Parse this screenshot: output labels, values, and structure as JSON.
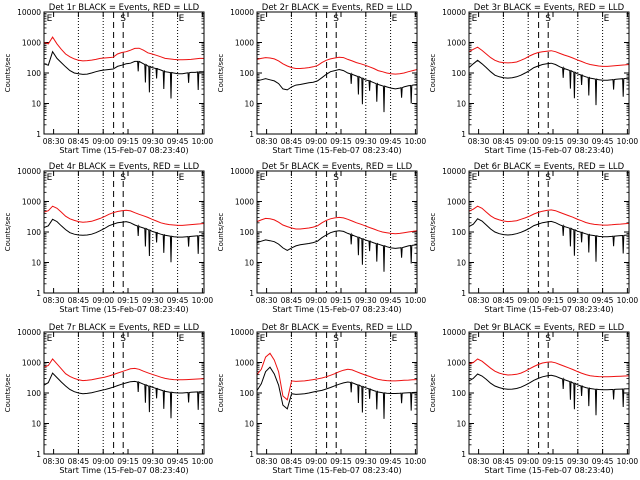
{
  "figure": {
    "colors": {
      "events": "#000000",
      "lld": "#ee1111",
      "frame": "#000000"
    }
  },
  "chart_data": [
    {
      "type": "line",
      "title": "Det 1r BLACK = Events, RED = LLD",
      "xlabel": "Start Time (15-Feb-07 08:23:40)",
      "ylabel": "Counts/sec",
      "x_ticks": [
        "08:30",
        "08:45",
        "09:00",
        "09:15",
        "09:30",
        "09:45",
        "10:00"
      ],
      "y_ticks": [
        "1",
        "10",
        "100",
        "1000",
        "10000"
      ],
      "ylim": [
        1,
        10000
      ],
      "log_y": true,
      "markers": [
        "E",
        "S",
        "E"
      ],
      "series": [
        {
          "role": "lld",
          "values": [
            1000,
            900,
            1500,
            900,
            600,
            420,
            340,
            290,
            260,
            250,
            255,
            265,
            280,
            300,
            310,
            320,
            330,
            420,
            470,
            500,
            560,
            640,
            650,
            560,
            460,
            420,
            380,
            340,
            300,
            290,
            280,
            270,
            270,
            275,
            280,
            290,
            300,
            300
          ]
        },
        {
          "role": "events",
          "values": [
            200,
            180,
            500,
            300,
            220,
            160,
            120,
            100,
            95,
            90,
            92,
            100,
            110,
            120,
            125,
            130,
            135,
            165,
            180,
            200,
            210,
            240,
            240,
            200,
            170,
            150,
            140,
            125,
            110,
            105,
            100,
            95,
            95,
            100,
            105,
            105,
            110,
            110
          ]
        }
      ]
    },
    {
      "type": "line",
      "title": "Det 2r BLACK = Events, RED = LLD",
      "xlabel": "Start Time (15-Feb-07 08:23:40)",
      "ylabel": "Counts/sec",
      "x_ticks": [
        "08:30",
        "08:45",
        "09:00",
        "09:15",
        "09:30",
        "09:45",
        "10:00"
      ],
      "y_ticks": [
        "1",
        "10",
        "100",
        "1000",
        "10000"
      ],
      "ylim": [
        1,
        10000
      ],
      "log_y": true,
      "markers": [
        "E",
        "S",
        "E"
      ],
      "series": [
        {
          "role": "lld",
          "values": [
            280,
            300,
            320,
            310,
            290,
            250,
            200,
            170,
            150,
            140,
            140,
            145,
            150,
            160,
            175,
            220,
            260,
            290,
            310,
            330,
            320,
            280,
            250,
            220,
            200,
            180,
            160,
            140,
            120,
            110,
            100,
            95,
            92,
            95,
            100,
            110,
            120,
            130
          ]
        },
        {
          "role": "events",
          "values": [
            55,
            60,
            65,
            60,
            55,
            45,
            30,
            28,
            35,
            40,
            42,
            45,
            48,
            50,
            55,
            70,
            90,
            110,
            120,
            130,
            120,
            100,
            90,
            80,
            70,
            60,
            55,
            48,
            42,
            38,
            35,
            32,
            30,
            32,
            35,
            38,
            40,
            42
          ]
        }
      ]
    },
    {
      "type": "line",
      "title": "Det 3r BLACK = Events, RED = LLD",
      "xlabel": "Start Time (15-Feb-07 08:23:40)",
      "ylabel": "Counts/sec",
      "x_ticks": [
        "08:30",
        "08:45",
        "09:00",
        "09:15",
        "09:30",
        "09:45",
        "10:00"
      ],
      "y_ticks": [
        "1",
        "10",
        "100",
        "1000",
        "10000"
      ],
      "ylim": [
        1,
        10000
      ],
      "log_y": true,
      "markers": [
        "E",
        "S",
        "E"
      ],
      "series": [
        {
          "role": "lld",
          "values": [
            500,
            600,
            700,
            550,
            420,
            320,
            260,
            230,
            220,
            215,
            220,
            230,
            260,
            300,
            360,
            420,
            470,
            500,
            520,
            540,
            500,
            440,
            390,
            350,
            310,
            270,
            240,
            210,
            190,
            180,
            170,
            165,
            165,
            170,
            175,
            180,
            185,
            190
          ]
        },
        {
          "role": "events",
          "values": [
            150,
            200,
            260,
            200,
            150,
            110,
            85,
            75,
            70,
            68,
            70,
            75,
            85,
            100,
            120,
            150,
            170,
            190,
            200,
            210,
            190,
            160,
            140,
            125,
            110,
            95,
            85,
            75,
            68,
            64,
            60,
            58,
            58,
            60,
            62,
            64,
            66,
            68
          ]
        }
      ]
    },
    {
      "type": "line",
      "title": "Det 4r BLACK = Events, RED = LLD",
      "xlabel": "Start Time (15-Feb-07 08:23:40)",
      "ylabel": "Counts/sec",
      "x_ticks": [
        "08:30",
        "08:45",
        "09:00",
        "09:15",
        "09:30",
        "09:45",
        "10:00"
      ],
      "y_ticks": [
        "1",
        "10",
        "100",
        "1000",
        "10000"
      ],
      "ylim": [
        1,
        10000
      ],
      "log_y": true,
      "markers": [
        "E",
        "S",
        "E"
      ],
      "series": [
        {
          "role": "lld",
          "values": [
            450,
            500,
            700,
            600,
            450,
            330,
            270,
            240,
            220,
            210,
            215,
            225,
            250,
            280,
            320,
            380,
            430,
            470,
            500,
            520,
            490,
            430,
            380,
            340,
            300,
            260,
            230,
            200,
            185,
            175,
            170,
            165,
            165,
            170,
            175,
            180,
            185,
            190
          ]
        },
        {
          "role": "events",
          "values": [
            140,
            160,
            260,
            220,
            160,
            120,
            95,
            85,
            80,
            78,
            80,
            85,
            95,
            110,
            130,
            160,
            180,
            200,
            210,
            220,
            200,
            170,
            150,
            135,
            120,
            105,
            95,
            85,
            78,
            74,
            70,
            68,
            68,
            70,
            72,
            74,
            76,
            78
          ]
        }
      ]
    },
    {
      "type": "line",
      "title": "Det 5r BLACK = Events, RED = LLD",
      "xlabel": "Start Time (15-Feb-07 08:23:40)",
      "ylabel": "Counts/sec",
      "x_ticks": [
        "08:30",
        "08:45",
        "09:00",
        "09:15",
        "09:30",
        "09:45",
        "10:00"
      ],
      "y_ticks": [
        "1",
        "10",
        "100",
        "1000",
        "10000"
      ],
      "ylim": [
        1,
        10000
      ],
      "log_y": true,
      "markers": [
        "E",
        "S",
        "E"
      ],
      "series": [
        {
          "role": "lld",
          "values": [
            220,
            250,
            280,
            270,
            250,
            210,
            170,
            150,
            135,
            125,
            125,
            130,
            135,
            145,
            160,
            200,
            240,
            270,
            290,
            300,
            290,
            260,
            230,
            200,
            180,
            160,
            140,
            125,
            110,
            100,
            95,
            90,
            88,
            90,
            95,
            100,
            105,
            110
          ]
        },
        {
          "role": "events",
          "values": [
            45,
            50,
            55,
            52,
            48,
            40,
            30,
            25,
            30,
            35,
            38,
            40,
            42,
            45,
            50,
            65,
            80,
            95,
            105,
            110,
            105,
            90,
            80,
            70,
            62,
            55,
            50,
            44,
            40,
            36,
            33,
            30,
            29,
            30,
            32,
            35,
            37,
            38
          ]
        }
      ]
    },
    {
      "type": "line",
      "title": "Det 6r BLACK = Events, RED = LLD",
      "xlabel": "Start Time (15-Feb-07 08:23:40)",
      "ylabel": "Counts/sec",
      "x_ticks": [
        "08:30",
        "08:45",
        "09:00",
        "09:15",
        "09:30",
        "09:45",
        "10:00"
      ],
      "y_ticks": [
        "1",
        "10",
        "100",
        "1000",
        "10000"
      ],
      "ylim": [
        1,
        10000
      ],
      "log_y": true,
      "markers": [
        "E",
        "S",
        "E"
      ],
      "series": [
        {
          "role": "lld",
          "values": [
            480,
            560,
            700,
            600,
            450,
            340,
            280,
            250,
            230,
            220,
            225,
            235,
            260,
            290,
            330,
            390,
            440,
            480,
            510,
            530,
            500,
            440,
            390,
            345,
            305,
            265,
            235,
            205,
            188,
            178,
            172,
            168,
            168,
            172,
            177,
            182,
            187,
            192
          ]
        },
        {
          "role": "events",
          "values": [
            150,
            180,
            270,
            230,
            170,
            125,
            100,
            88,
            82,
            80,
            82,
            88,
            98,
            112,
            132,
            162,
            182,
            202,
            212,
            222,
            202,
            172,
            152,
            137,
            122,
            107,
            97,
            87,
            80,
            76,
            72,
            70,
            70,
            72,
            74,
            76,
            78,
            80
          ]
        }
      ]
    },
    {
      "type": "line",
      "title": "Det 7r BLACK = Events, RED = LLD",
      "xlabel": "Start Time (15-Feb-07 08:23:40)",
      "ylabel": "Counts/sec",
      "x_ticks": [
        "08:30",
        "08:45",
        "09:00",
        "09:15",
        "09:30",
        "09:45",
        "10:00"
      ],
      "y_ticks": [
        "1",
        "10",
        "100",
        "1000",
        "10000"
      ],
      "ylim": [
        1,
        10000
      ],
      "log_y": true,
      "markers": [
        "E",
        "S",
        "E"
      ],
      "series": [
        {
          "role": "lld",
          "values": [
            700,
            800,
            1300,
            900,
            620,
            430,
            350,
            300,
            270,
            255,
            260,
            270,
            290,
            310,
            330,
            360,
            400,
            450,
            500,
            560,
            620,
            640,
            600,
            520,
            460,
            410,
            370,
            330,
            300,
            285,
            275,
            270,
            270,
            275,
            280,
            285,
            290,
            295
          ]
        },
        {
          "role": "events",
          "values": [
            180,
            220,
            450,
            320,
            230,
            170,
            130,
            110,
            100,
            95,
            97,
            102,
            110,
            120,
            128,
            140,
            155,
            175,
            195,
            215,
            235,
            240,
            225,
            195,
            172,
            155,
            140,
            125,
            113,
            107,
            103,
            100,
            100,
            103,
            106,
            108,
            110,
            112
          ]
        }
      ]
    },
    {
      "type": "line",
      "title": "Det 8r BLACK = Events, RED = LLD",
      "xlabel": "Start Time (15-Feb-07 08:23:40)",
      "ylabel": "Counts/sec",
      "x_ticks": [
        "08:30",
        "08:45",
        "09:00",
        "09:15",
        "09:30",
        "09:45",
        "10:00"
      ],
      "y_ticks": [
        "1",
        "10",
        "100",
        "1000",
        "10000"
      ],
      "ylim": [
        1,
        10000
      ],
      "log_y": true,
      "markers": [
        "E",
        "S",
        "E"
      ],
      "series": [
        {
          "role": "lld",
          "values": [
            400,
            600,
            1500,
            2000,
            1200,
            500,
            80,
            60,
            250,
            240,
            245,
            250,
            260,
            275,
            290,
            310,
            340,
            380,
            430,
            500,
            560,
            600,
            570,
            500,
            440,
            390,
            350,
            310,
            280,
            265,
            255,
            250,
            250,
            255,
            260,
            265,
            270,
            275
          ]
        },
        {
          "role": "events",
          "values": [
            120,
            200,
            500,
            700,
            420,
            180,
            40,
            30,
            95,
            90,
            92,
            95,
            100,
            108,
            115,
            122,
            135,
            152,
            172,
            195,
            215,
            230,
            218,
            190,
            168,
            150,
            135,
            120,
            108,
            102,
            98,
            96,
            96,
            98,
            100,
            102,
            104,
            106
          ]
        }
      ]
    },
    {
      "type": "line",
      "title": "Det 9r BLACK = Events, RED = LLD",
      "xlabel": "Start Time (15-Feb-07 08:23:40)",
      "ylabel": "Counts/sec",
      "x_ticks": [
        "08:30",
        "08:45",
        "09:00",
        "09:15",
        "09:30",
        "09:45",
        "10:00"
      ],
      "y_ticks": [
        "1",
        "10",
        "100",
        "1000",
        "10000"
      ],
      "ylim": [
        1,
        10000
      ],
      "log_y": true,
      "markers": [
        "E",
        "S",
        "E"
      ],
      "series": [
        {
          "role": "lld",
          "values": [
            900,
            1000,
            1300,
            1100,
            850,
            650,
            520,
            450,
            410,
            390,
            395,
            410,
            450,
            520,
            620,
            740,
            860,
            960,
            1020,
            1050,
            980,
            860,
            760,
            670,
            590,
            510,
            450,
            400,
            370,
            355,
            345,
            340,
            340,
            345,
            350,
            355,
            360,
            365
          ]
        },
        {
          "role": "events",
          "values": [
            250,
            300,
            420,
            360,
            280,
            210,
            170,
            150,
            138,
            132,
            134,
            140,
            155,
            180,
            215,
            260,
            300,
            340,
            365,
            380,
            355,
            310,
            275,
            245,
            215,
            188,
            168,
            150,
            140,
            134,
            130,
            128,
            128,
            130,
            132,
            134,
            136,
            138
          ]
        }
      ]
    }
  ]
}
